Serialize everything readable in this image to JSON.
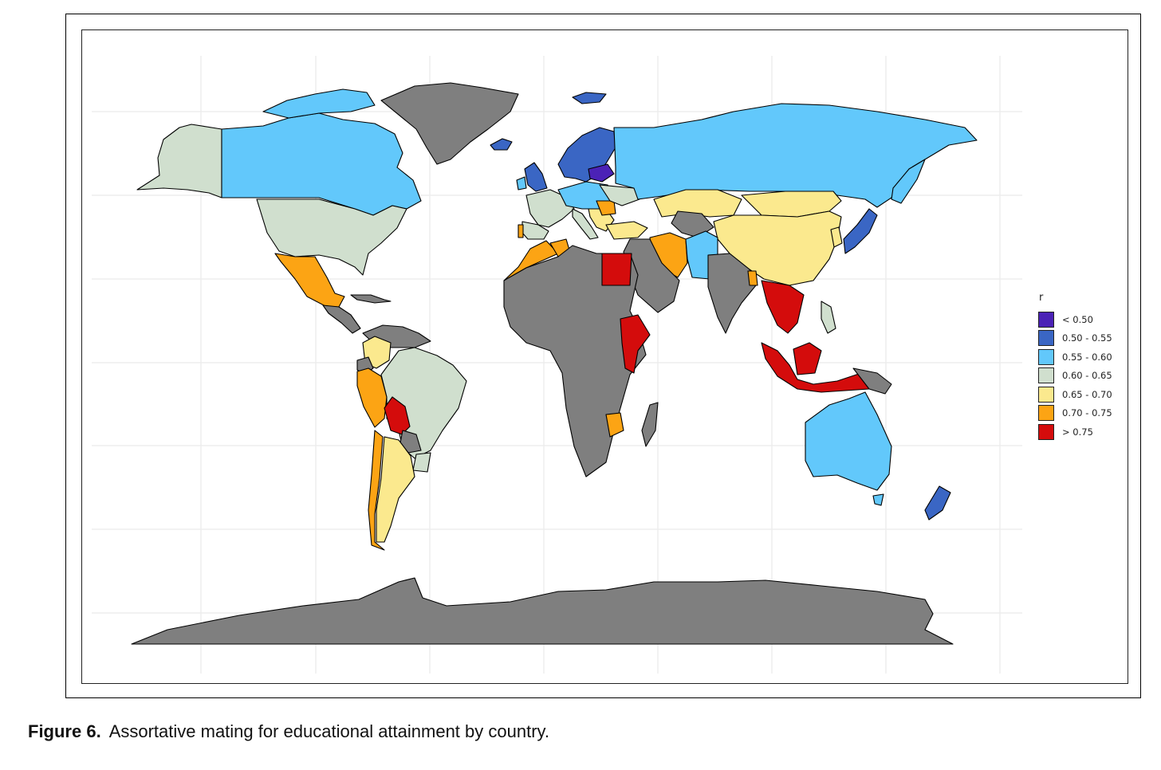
{
  "colors": {
    "bin_lt_050": "#4b22b6",
    "bin_050_055": "#3a66c4",
    "bin_055_060": "#62c8fb",
    "bin_060_065": "#d0dfce",
    "bin_065_070": "#fbe98e",
    "bin_070_075": "#fca414",
    "bin_gt_075": "#d40c0c",
    "no_data": "#7f7f7f",
    "border": "#000000",
    "grid": "#ebebeb"
  },
  "legend": {
    "title": "r",
    "items": [
      {
        "label": "< 0.50",
        "color": "#4b22b6"
      },
      {
        "label": "0.50 - 0.55",
        "color": "#3a66c4"
      },
      {
        "label": "0.55 - 0.60",
        "color": "#62c8fb"
      },
      {
        "label": "0.60 - 0.65",
        "color": "#d0dfce"
      },
      {
        "label": "0.65 - 0.70",
        "color": "#fbe98e"
      },
      {
        "label": "0.70 - 0.75",
        "color": "#fca414"
      },
      {
        "label": "> 0.75",
        "color": "#d40c0c"
      }
    ]
  },
  "caption": {
    "label": "Figure 6.",
    "text": "Assortative mating for educational attainment by country."
  }
}
